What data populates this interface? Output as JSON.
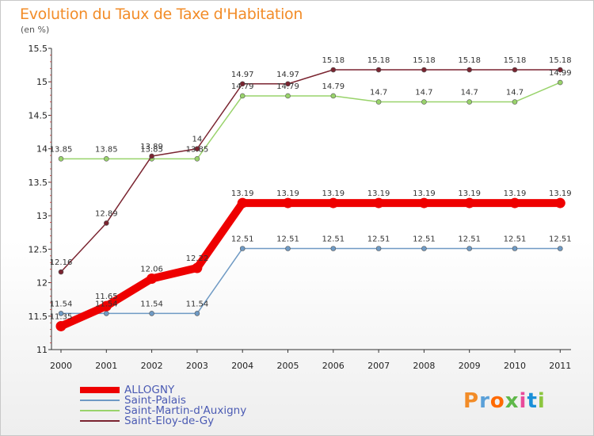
{
  "header": {
    "title": "Evolution du Taux de Taxe d'Habitation",
    "unit": "(en %)"
  },
  "logo": {
    "text": "Proxiti",
    "colors": [
      "#f28c28",
      "#5aa0d8",
      "#ff6a00",
      "#5fb84a",
      "#e84a9a",
      "#1a8fd8",
      "#8cc63f"
    ]
  },
  "chart_data": {
    "type": "line",
    "title": "Evolution du Taux de Taxe d'Habitation",
    "ylabel": "(en %)",
    "xlabel": "",
    "x": [
      2000,
      2001,
      2002,
      2003,
      2004,
      2005,
      2006,
      2007,
      2008,
      2009,
      2010,
      2011
    ],
    "ylim": [
      11,
      15.5
    ],
    "yticks": [
      11,
      11.5,
      12,
      12.5,
      13,
      13.5,
      14,
      14.5,
      15,
      15.5
    ],
    "grid": false,
    "legend": "bottom-left",
    "series": [
      {
        "name": "ALLOGNY",
        "color": "#ee0000",
        "values": [
          11.35,
          11.65,
          12.06,
          12.22,
          13.19,
          13.19,
          13.19,
          13.19,
          13.19,
          13.19,
          13.19,
          13.19
        ],
        "labels": [
          "11.35",
          "11.65",
          "12.06",
          "12.22",
          "13.19",
          "13.19",
          "13.19",
          "13.19",
          "13.19",
          "13.19",
          "13.19",
          "13.19"
        ]
      },
      {
        "name": "Saint-Palais",
        "color": "#6f9ac4",
        "values": [
          11.54,
          11.54,
          11.54,
          11.54,
          12.51,
          12.51,
          12.51,
          12.51,
          12.51,
          12.51,
          12.51,
          12.51
        ],
        "labels": [
          "11.54",
          "11.54",
          "11.54",
          "11.54",
          "12.51",
          "12.51",
          "12.51",
          "12.51",
          "12.51",
          "12.51",
          "12.51",
          "12.51"
        ]
      },
      {
        "name": "Saint-Martin-d'Auxigny",
        "color": "#99d36b",
        "values": [
          13.85,
          13.85,
          13.85,
          13.85,
          14.79,
          14.79,
          14.79,
          14.7,
          14.7,
          14.7,
          14.7,
          14.99
        ],
        "labels": [
          "13.85",
          "13.85",
          "13.85",
          "13.85",
          "14.79",
          "14.79",
          "14.79",
          "14.7",
          "14.7",
          "14.7",
          "14.7",
          "14.99"
        ]
      },
      {
        "name": "Saint-Eloy-de-Gy",
        "color": "#7a2430",
        "values": [
          12.16,
          12.89,
          13.89,
          14.0,
          14.97,
          14.97,
          15.18,
          15.18,
          15.18,
          15.18,
          15.18,
          15.18
        ],
        "labels": [
          "12.16",
          "12.89",
          "13.89",
          "14",
          "14.97",
          "14.97",
          "15.18",
          "15.18",
          "15.18",
          "15.18",
          "15.18",
          "15.18"
        ]
      }
    ]
  }
}
